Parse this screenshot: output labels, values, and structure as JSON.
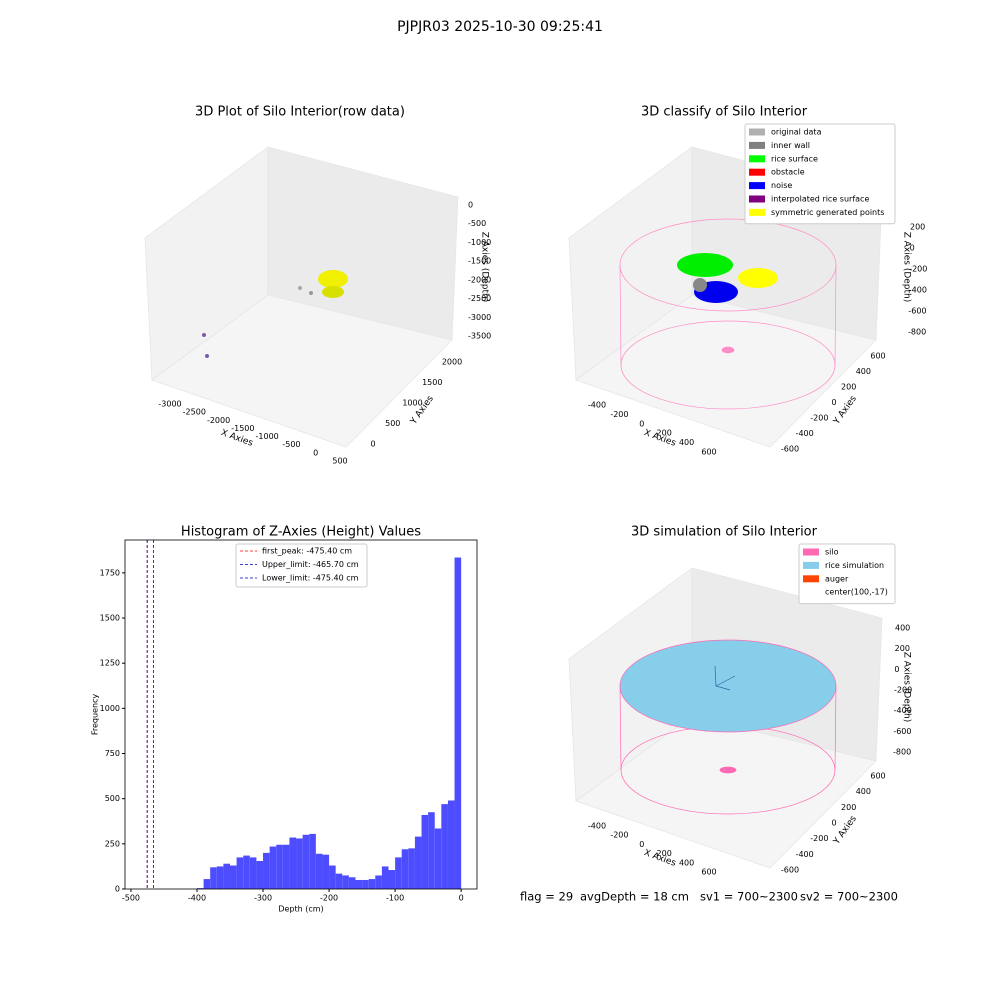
{
  "suptitle": "PJPJR03 2025-10-30 09:25:41",
  "chart_data": [
    {
      "type": "scatter3d",
      "title": "3D Plot of Silo Interior(row data)",
      "xlabel": "X Axies",
      "ylabel": "Y Axies",
      "zlabel": "Z Axies (Depth)",
      "xticks": [
        -3000,
        -2500,
        -2000,
        -1500,
        -1000,
        -500,
        0,
        500
      ],
      "yticks": [
        0,
        500,
        1000,
        1500,
        2000
      ],
      "zticks": [
        0,
        -500,
        -1000,
        -1500,
        -2000,
        -2500,
        -3000,
        -3500
      ]
    },
    {
      "type": "scatter3d",
      "title": "3D classify of Silo Interior",
      "xlabel": "X Axies",
      "ylabel": "Y Axies",
      "zlabel": "Z Axies (Depth)",
      "xticks": [
        -400,
        -200,
        0,
        200,
        400,
        600
      ],
      "yticks": [
        -600,
        -400,
        -200,
        0,
        200,
        400,
        600
      ],
      "zticks": [
        200,
        0,
        -200,
        -400,
        -600,
        -800
      ],
      "legend": [
        {
          "name": "original data",
          "color": "#b0b0b0"
        },
        {
          "name": "inner wall",
          "color": "#808080"
        },
        {
          "name": "rice surface",
          "color": "#00ff00"
        },
        {
          "name": "obstacle",
          "color": "#ff0000"
        },
        {
          "name": "noise",
          "color": "#0000ff"
        },
        {
          "name": "interpolated rice surface",
          "color": "#800080"
        },
        {
          "name": "symmetric generated points",
          "color": "#ffff00"
        }
      ]
    },
    {
      "type": "histogram",
      "title": "Histogram of Z-Axies (Height) Values",
      "xlabel": "Depth (cm)",
      "ylabel": "Frequency",
      "color": "#4d4dff",
      "bins": [
        -400,
        -390,
        -380,
        -370,
        -360,
        -350,
        -340,
        -330,
        -320,
        -310,
        -300,
        -290,
        -280,
        -270,
        -260,
        -250,
        -240,
        -230,
        -220,
        -210,
        -200,
        -190,
        -180,
        -170,
        -160,
        -150,
        -140,
        -130,
        -120,
        -110,
        -100,
        -90,
        -80,
        -70,
        -60,
        -50,
        -40,
        -30,
        -20,
        -10,
        0
      ],
      "values": [
        5,
        55,
        120,
        125,
        140,
        130,
        175,
        185,
        175,
        155,
        200,
        235,
        245,
        245,
        285,
        280,
        300,
        305,
        195,
        190,
        130,
        85,
        75,
        65,
        50,
        50,
        55,
        75,
        125,
        105,
        175,
        220,
        225,
        290,
        410,
        425,
        335,
        470,
        490,
        1835
      ],
      "xlim": [
        -509,
        24
      ],
      "ylim": [
        0,
        1932
      ],
      "xticks": [
        -500,
        -400,
        -300,
        -200,
        -100,
        0
      ],
      "yticks": [
        0,
        250,
        500,
        750,
        1000,
        1250,
        1500,
        1750
      ],
      "vlines": [
        {
          "name": "first_peak: -475.40 cm",
          "value": -475.4,
          "color": "#ff0000"
        },
        {
          "name": "Upper_limit: -465.70 cm",
          "value": -465.7,
          "color": "#0000cc"
        },
        {
          "name": "Lower_limit: -475.40 cm",
          "value": -475.4,
          "color": "#0000cc"
        }
      ]
    },
    {
      "type": "scatter3d",
      "title": "3D simulation of Silo Interior",
      "xlabel": "X Axies",
      "ylabel": "Y Axies",
      "zlabel": "Z Axies (Depth)",
      "xticks": [
        -400,
        -200,
        0,
        200,
        400,
        600
      ],
      "yticks": [
        -600,
        -400,
        -200,
        0,
        200,
        400,
        600
      ],
      "zticks": [
        400,
        200,
        0,
        -200,
        -400,
        -600,
        -800
      ],
      "legend": [
        {
          "name": "silo",
          "color": "#ff69b4"
        },
        {
          "name": "rice simulation",
          "color": "#87ceeb"
        },
        {
          "name": "auger",
          "color": "#ff4500"
        },
        {
          "name": "center(100,-17)",
          "color": null
        }
      ]
    }
  ],
  "footer": [
    "flag = 29",
    "avgDepth = 18 cm",
    "sv1 = 700~2300",
    "sv2 = 700~2300"
  ]
}
